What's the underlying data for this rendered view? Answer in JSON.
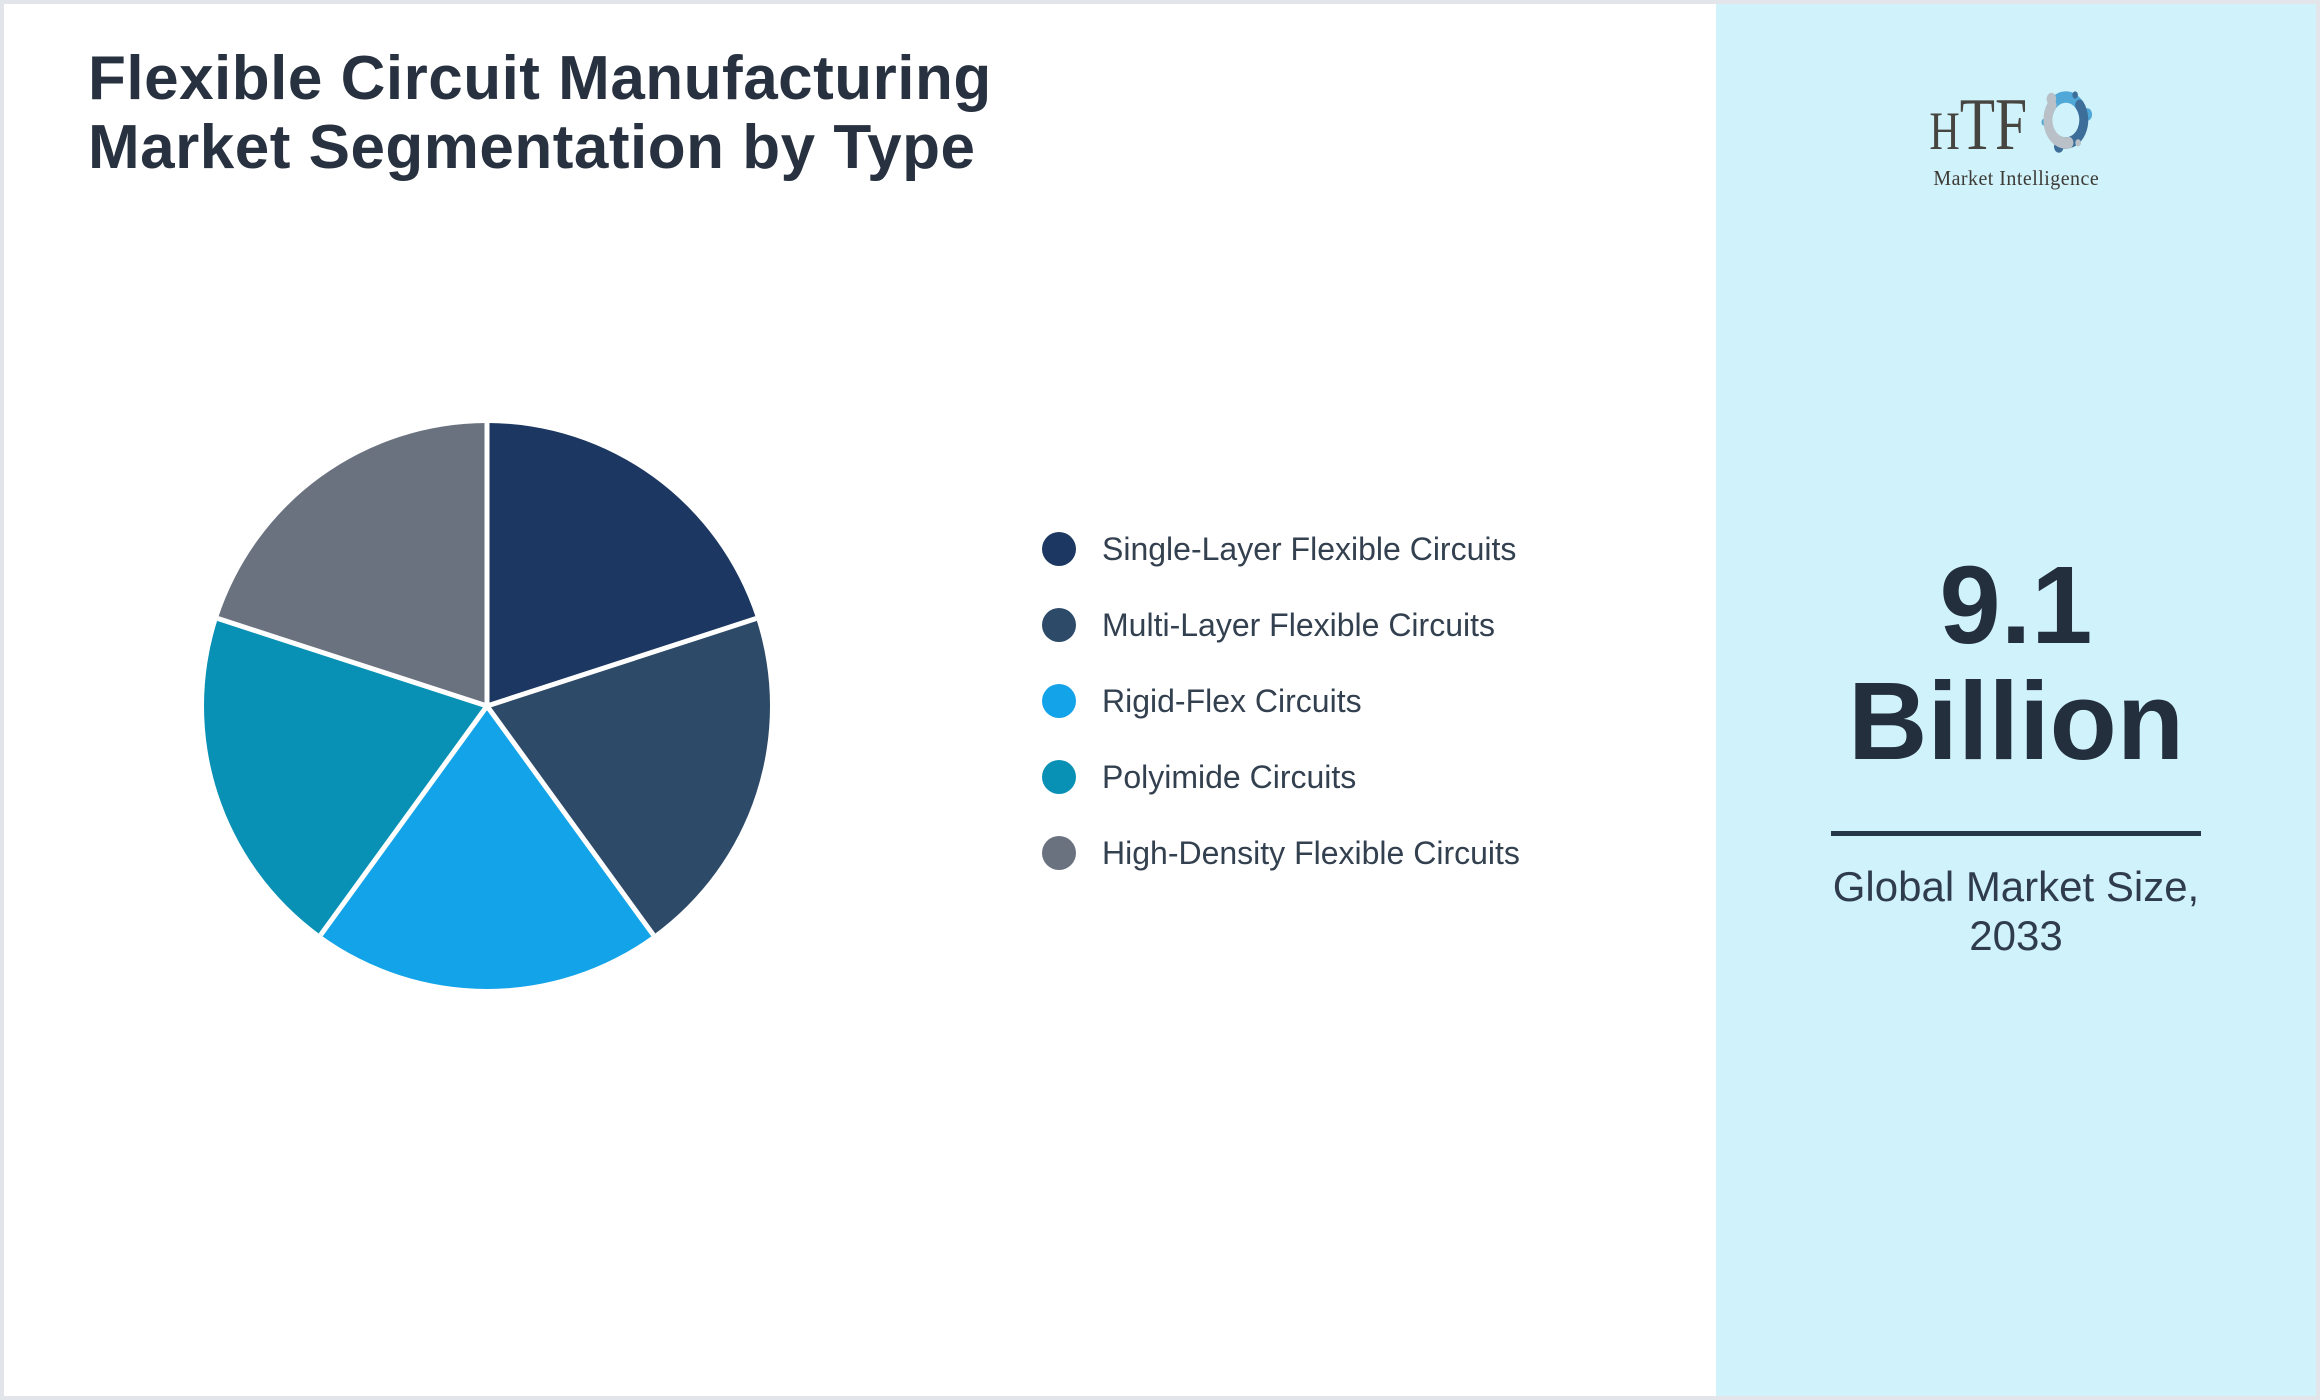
{
  "page": {
    "title_line1": "Flexible Circuit Manufacturing",
    "title_line2": "Market Segmentation by Type"
  },
  "chart_data": {
    "type": "pie",
    "title": "Flexible Circuit Manufacturing Market Segmentation by Type",
    "categories": [
      "Single-Layer Flexible Circuits",
      "Multi-Layer Flexible Circuits",
      "Rigid-Flex Circuits",
      "Polyimide Circuits",
      "High-Density Flexible Circuits"
    ],
    "values": [
      20,
      20,
      20,
      20,
      20
    ],
    "colors": [
      "#1c3761",
      "#2d4a68",
      "#12a3e8",
      "#0891b5",
      "#6a7280"
    ],
    "start_angle_deg": 0,
    "direction": "clockwise",
    "separator_color": "#ffffff",
    "legend_position": "right",
    "slice_labels_shown": false
  },
  "sidebar": {
    "background": "#d0f2fb",
    "logo": {
      "h": "H",
      "tf": "TF",
      "subtitle": "Market Intelligence",
      "icon_colors": [
        "#4fa8d8",
        "#3d6e99",
        "#b9c0c7"
      ]
    },
    "value_line1": "9.1",
    "value_line2": "Billion",
    "caption_line1": "Global Market Size,",
    "caption_line2": "2033",
    "accent_text_color": "#232f3d"
  }
}
